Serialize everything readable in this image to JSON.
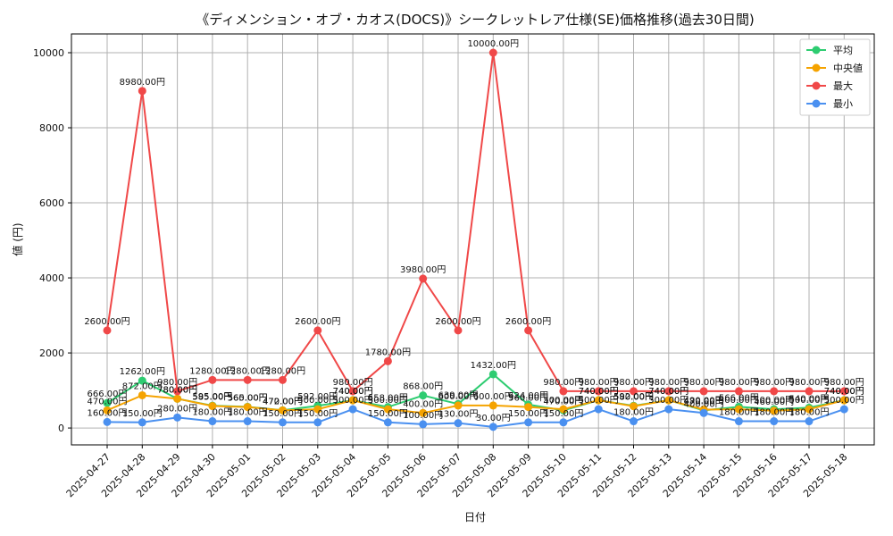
{
  "chart_data": {
    "type": "line",
    "title": "《ディメンション・オブ・カオス(DOCS)》シークレットレア仕様(SE)価格推移(過去30日間)",
    "xlabel": "日付",
    "ylabel": "値 (円)",
    "ylim": [
      -450,
      10500
    ],
    "yticks": [
      0,
      2000,
      4000,
      6000,
      8000,
      10000
    ],
    "grid": true,
    "legend_position": "top-right",
    "label_suffix": "円",
    "categories": [
      "2025-04-27",
      "2025-04-28",
      "2025-04-29",
      "2025-04-30",
      "2025-05-01",
      "2025-05-02",
      "2025-05-03",
      "2025-05-04",
      "2025-05-05",
      "2025-05-06",
      "2025-05-07",
      "2025-05-08",
      "2025-05-09",
      "2025-05-10",
      "2025-05-11",
      "2025-05-12",
      "2025-05-13",
      "2025-05-14",
      "2025-05-15",
      "2025-05-16",
      "2025-05-17",
      "2025-05-18"
    ],
    "series": [
      {
        "name": "平均",
        "color": "#2ecc71",
        "values": [
          666,
          1262,
          780,
          595,
          565,
          472,
          592,
          740,
          558,
          868,
          639,
          1432,
          624,
          470,
          740,
          592,
          740,
          470,
          566,
          500,
          540,
          740
        ]
      },
      {
        "name": "中央値",
        "color": "#f5a300",
        "values": [
          470,
          872,
          780,
          585,
          560,
          470,
          500,
          740,
          500,
          400,
          600,
          600,
          560,
          500,
          740,
          580,
          740,
          490,
          500,
          460,
          500,
          740
        ]
      },
      {
        "name": "最大",
        "color": "#f04848",
        "values": [
          2600,
          8980,
          980,
          1280,
          1280,
          1280,
          2600,
          980,
          1780,
          3980,
          2600,
          10000,
          2600,
          980,
          980,
          980,
          980,
          980,
          980,
          980,
          980,
          980
        ]
      },
      {
        "name": "最小",
        "color": "#4a90f0",
        "values": [
          160,
          150,
          280,
          180,
          180,
          150,
          150,
          500,
          150,
          100,
          130,
          30,
          150,
          150,
          500,
          180,
          500,
          400,
          180,
          180,
          180,
          500
        ]
      }
    ]
  }
}
